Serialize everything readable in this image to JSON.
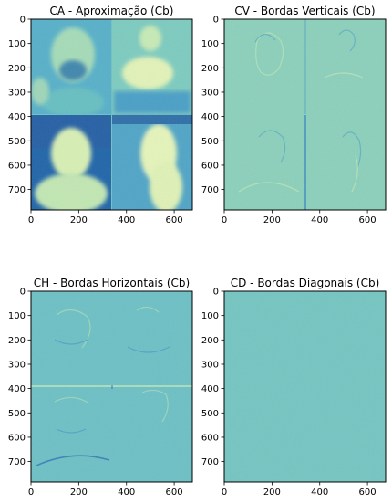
{
  "figure": {
    "background": "#ffffff"
  },
  "chart_data": [
    {
      "type": "heatmap",
      "title": "CA - Aproximação (Cb)",
      "colormap": "YlGnBu",
      "image_extent": {
        "x": [
          0,
          676
        ],
        "y": [
          0,
          784
        ]
      },
      "xticks": [
        0,
        200,
        400,
        600
      ],
      "yticks": [
        0,
        100,
        200,
        300,
        400,
        500,
        600,
        700
      ],
      "xlim": [
        0,
        676
      ],
      "ylim": [
        784,
        0
      ],
      "content": "approximation"
    },
    {
      "type": "heatmap",
      "title": "CV - Bordas Verticais (Cb)",
      "colormap": "YlGnBu",
      "image_extent": {
        "x": [
          0,
          676
        ],
        "y": [
          0,
          784
        ]
      },
      "xticks": [
        0,
        200,
        400,
        600
      ],
      "yticks": [
        0,
        100,
        200,
        300,
        400,
        500,
        600,
        700
      ],
      "xlim": [
        0,
        676
      ],
      "ylim": [
        784,
        0
      ],
      "content": "vertical_edges"
    },
    {
      "type": "heatmap",
      "title": "CH - Bordas Horizontais (Cb)",
      "colormap": "YlGnBu",
      "image_extent": {
        "x": [
          0,
          676
        ],
        "y": [
          0,
          784
        ]
      },
      "xticks": [
        0,
        200,
        400,
        600
      ],
      "yticks": [
        0,
        100,
        200,
        300,
        400,
        500,
        600,
        700
      ],
      "xlim": [
        0,
        676
      ],
      "ylim": [
        784,
        0
      ],
      "content": "horizontal_edges"
    },
    {
      "type": "heatmap",
      "title": "CD - Bordas Diagonais (Cb)",
      "colormap": "YlGnBu",
      "image_extent": {
        "x": [
          0,
          676
        ],
        "y": [
          0,
          784
        ]
      },
      "xticks": [
        0,
        200,
        400,
        600
      ],
      "yticks": [
        0,
        100,
        200,
        300,
        400,
        500,
        600,
        700
      ],
      "xlim": [
        0,
        676
      ],
      "ylim": [
        784,
        0
      ],
      "content": "diagonal_edges"
    }
  ],
  "colors": {
    "ca_light": "#d6efb3",
    "ca_mid": "#5fbcc2",
    "ca_blue": "#3d94c6",
    "ca_deep": "#1d5ea8",
    "cv_base": "#8bd0bb",
    "ch_base": "#6cc0c5",
    "cd_base": "#74c5c2",
    "edge_dark": "#3a8fbf",
    "edge_light": "#c3e8b7"
  }
}
